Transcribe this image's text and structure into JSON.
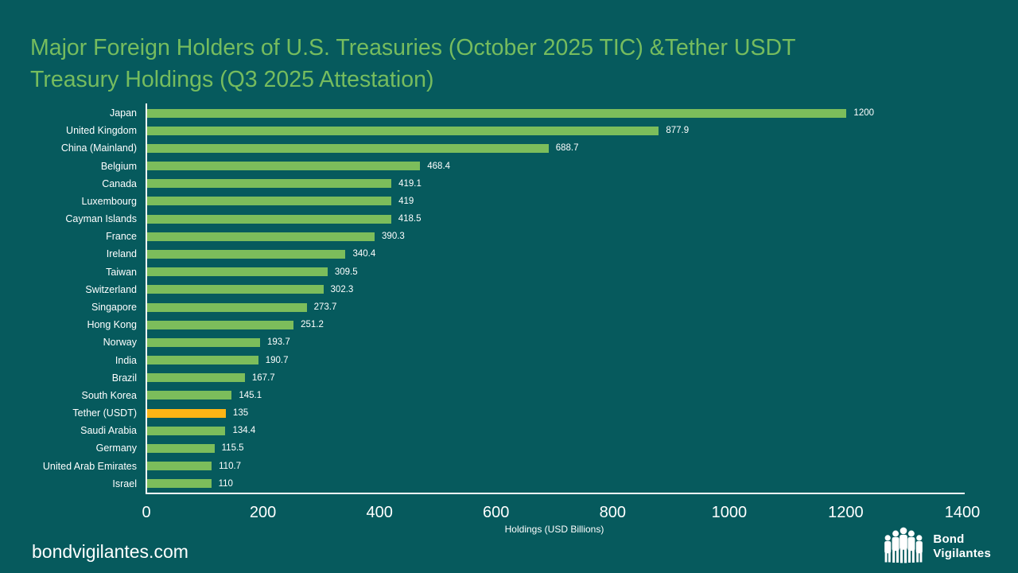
{
  "slide": {
    "background_color": "#065A5D",
    "title_color": "#76BC5E",
    "title_line1": "Major Foreign Holders of U.S. Treasuries (October 2025 TIC) &Tether USDT",
    "title_line2": "Treasury Holdings (Q3 2025 Attestation)",
    "footer_text": "bondvigilantes.com",
    "logo": {
      "icon": "people-group-icon",
      "text_line1": "Bond",
      "text_line2": "Vigilantes"
    }
  },
  "chart_data": {
    "type": "bar",
    "orientation": "horizontal",
    "title": "Major Foreign Holders of U.S. Treasuries (October 2025 TIC) &Tether USDT Treasury Holdings (Q3 2025 Attestation)",
    "xlabel": "Holdings (USD Billions)",
    "xlim": [
      0,
      1400
    ],
    "xticks": [
      0,
      200,
      400,
      600,
      800,
      1000,
      1200,
      1400
    ],
    "grid": false,
    "legend": "none",
    "bar_color": "#7CBD5B",
    "highlight_color": "#FDB515",
    "highlight_category": "Tether (USDT)",
    "categories": [
      "Japan",
      "United Kingdom",
      "China (Mainland)",
      "Belgium",
      "Canada",
      "Luxembourg",
      "Cayman Islands",
      "France",
      "Ireland",
      "Taiwan",
      "Switzerland",
      "Singapore",
      "Hong Kong",
      "Norway",
      "India",
      "Brazil",
      "South Korea",
      "Tether (USDT)",
      "Saudi Arabia",
      "Germany",
      "United Arab Emirates",
      "Israel"
    ],
    "values": [
      1200,
      877.9,
      688.7,
      468.4,
      419.1,
      419,
      418.5,
      390.3,
      340.4,
      309.5,
      302.3,
      273.7,
      251.2,
      193.7,
      190.7,
      167.7,
      145.1,
      135,
      134.4,
      115.5,
      110.7,
      110
    ],
    "value_labels": [
      "1200",
      "877.9",
      "688.7",
      "468.4",
      "419.1",
      "419",
      "418.5",
      "390.3",
      "340.4",
      "309.5",
      "302.3",
      "273.7",
      "251.2",
      "193.7",
      "190.7",
      "167.7",
      "145.1",
      "135",
      "134.4",
      "115.5",
      "110.7",
      "110"
    ]
  }
}
